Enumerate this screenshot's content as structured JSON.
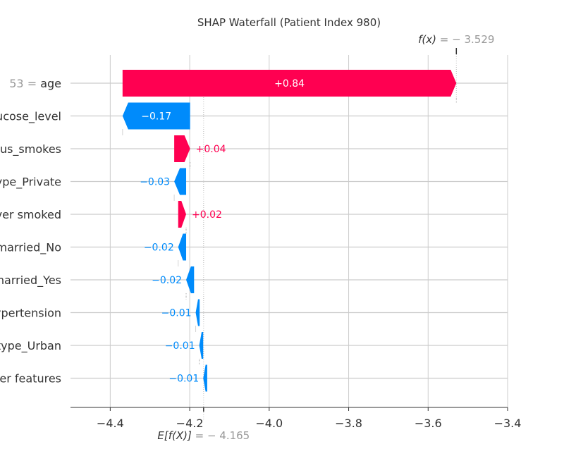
{
  "chart_data": {
    "type": "bar",
    "subtype": "shap-waterfall",
    "title": "SHAP Waterfall (Patient Index 980)",
    "base_value": -4.165,
    "output_value": -3.529,
    "base_label": {
      "prefix": "E[f(X)]",
      "value": "= − 4.165"
    },
    "output_label": {
      "prefix": "f(x)",
      "value": "= − 3.529"
    },
    "xlim": [
      -4.5,
      -3.4
    ],
    "x_ticks": [
      -4.4,
      -4.2,
      -4.0,
      -3.8,
      -3.6,
      -3.4
    ],
    "x_tick_labels": [
      "−4.4",
      "−4.2",
      "−4.0",
      "−3.8",
      "−3.6",
      "−3.4"
    ],
    "features": [
      {
        "label": "age",
        "value_prefix": "53 = ",
        "shap": 0.84,
        "start": -4.369,
        "label_text": "+0.84"
      },
      {
        "label": "avg_glucose_level",
        "value_prefix": "",
        "shap": -0.17,
        "start": -4.199,
        "label_text": "−0.17"
      },
      {
        "label": "smoking_status_smokes",
        "value_prefix": "",
        "shap": 0.04,
        "start": -4.239,
        "label_text": "+0.04"
      },
      {
        "label": "work_type_Private",
        "value_prefix": "",
        "shap": -0.03,
        "start": -4.209,
        "label_text": "−0.03"
      },
      {
        "label": "smoking_status_never smoked",
        "value_prefix": "",
        "shap": 0.02,
        "start": -4.229,
        "label_text": "+0.02"
      },
      {
        "label": "ever_married_No",
        "value_prefix": "",
        "shap": -0.02,
        "start": -4.209,
        "label_text": "−0.02"
      },
      {
        "label": "ever_married_Yes",
        "value_prefix": "",
        "shap": -0.02,
        "start": -4.189,
        "label_text": "−0.02"
      },
      {
        "label": "hypertension",
        "value_prefix": "",
        "shap": -0.01,
        "start": -4.175,
        "label_text": "−0.01"
      },
      {
        "label": "Residence_type_Urban",
        "value_prefix": "",
        "shap": -0.01,
        "start": -4.166,
        "label_text": "−0.01"
      },
      {
        "label": "other features",
        "value_prefix": "",
        "shap": -0.01,
        "start": -4.156,
        "label_text": "−0.01"
      }
    ],
    "colors": {
      "positive": "#ff0051",
      "negative": "#008bfb",
      "grid": "#cccccc",
      "text": "#333333",
      "muted": "#999999"
    },
    "grid": true
  }
}
